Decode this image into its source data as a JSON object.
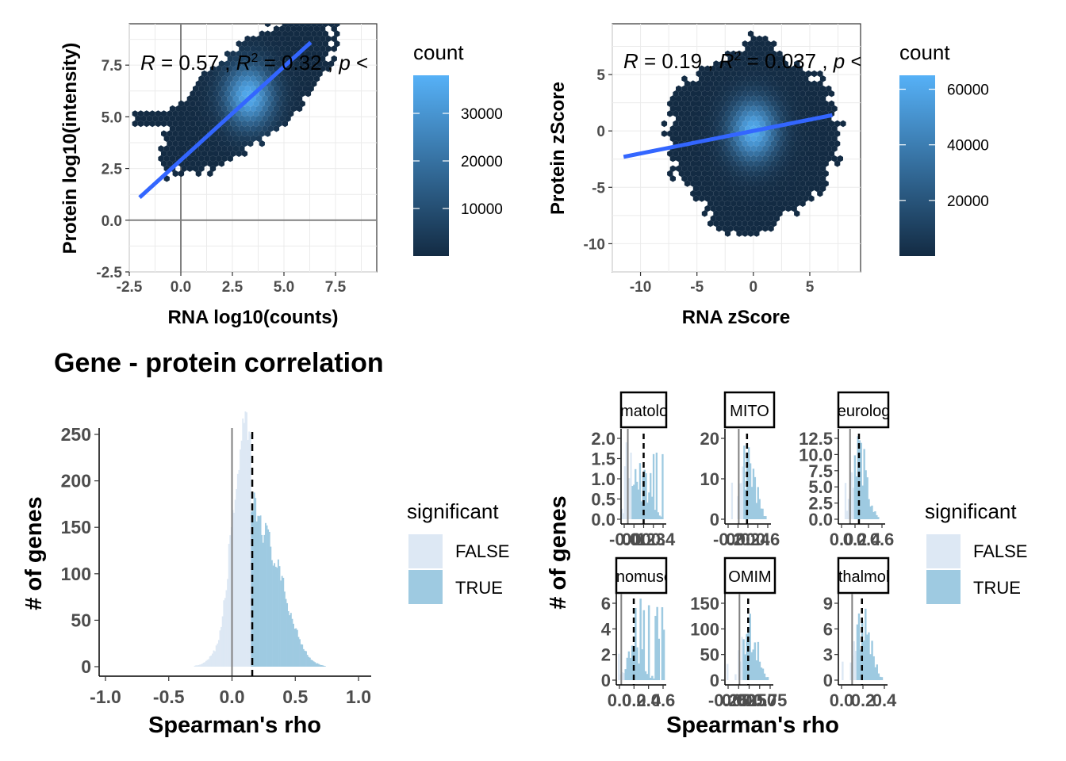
{
  "section_title": "Gene - protein correlation",
  "chart_data": [
    {
      "id": "scatter_log",
      "type": "hexbin",
      "annotation": {
        "r": "0.57",
        "r2": "0.32",
        "p": "p"
      },
      "xlabel": "RNA log10(counts)",
      "ylabel": "Protein log10(intensity)",
      "xlim": [
        -2.5,
        9.5
      ],
      "ylim": [
        -2.5,
        9.5
      ],
      "xticks": [
        -2.5,
        0,
        2.5,
        5,
        7.5
      ],
      "xtick_labels": [
        "-2.5",
        "0.0",
        "2.5",
        "5.0",
        "7.5"
      ],
      "yticks": [
        -2.5,
        0,
        2.5,
        5,
        7.5
      ],
      "ytick_labels": [
        "-2.5",
        "0.0",
        "2.5",
        "5.0",
        "7.5"
      ],
      "fit_line": {
        "x": [
          -2.0,
          6.3
        ],
        "y": [
          1.1,
          8.6
        ]
      },
      "density_center": [
        3.3,
        6.0
      ],
      "legend": {
        "title": "count",
        "ticks": [
          10000,
          20000,
          30000
        ],
        "tick_labels": [
          "10000",
          "20000",
          "30000"
        ],
        "max": 38000
      }
    },
    {
      "id": "scatter_z",
      "type": "hexbin",
      "annotation": {
        "r": "0.19",
        "r2": "0.037",
        "p": "p"
      },
      "xlabel": "RNA zScore",
      "ylabel": "Protein zScore",
      "xlim": [
        -12.5,
        9.5
      ],
      "ylim": [
        -12.5,
        9.5
      ],
      "xticks": [
        -10,
        -5,
        0,
        5
      ],
      "xtick_labels": [
        "-10",
        "-5",
        "0",
        "5"
      ],
      "yticks": [
        -10,
        -5,
        0,
        5
      ],
      "ytick_labels": [
        "-10",
        "-5",
        "0",
        "5"
      ],
      "fit_line": {
        "x": [
          -11.5,
          7.0
        ],
        "y": [
          -2.3,
          1.4
        ]
      },
      "density_center": [
        0,
        0
      ],
      "legend": {
        "title": "count",
        "ticks": [
          20000,
          40000,
          60000
        ],
        "tick_labels": [
          "20000",
          "40000",
          "60000"
        ],
        "max": 65000
      }
    },
    {
      "id": "hist_all",
      "type": "histogram",
      "xlabel": "Spearman's rho",
      "ylabel": "# of genes",
      "xlim": [
        -1.05,
        1.1
      ],
      "ylim": [
        0,
        255
      ],
      "xticks": [
        -1,
        -0.5,
        0,
        0.5,
        1
      ],
      "xtick_labels": [
        "-1.0",
        "-0.5",
        "0.0",
        "0.5",
        "1.0"
      ],
      "yticks": [
        0,
        50,
        100,
        150,
        200,
        250
      ],
      "ytick_labels": [
        "0",
        "50",
        "100",
        "150",
        "200",
        "250"
      ],
      "median": 0.16,
      "fill_series": [
        {
          "name": "FALSE",
          "x": [
            -0.3,
            -0.25,
            -0.2,
            -0.15,
            -0.1,
            -0.05,
            0.0,
            0.05,
            0.1,
            0.15
          ],
          "y": [
            1,
            2,
            6,
            14,
            30,
            80,
            160,
            215,
            250,
            235
          ]
        },
        {
          "name": "TRUE",
          "x": [
            0.15,
            0.2,
            0.25,
            0.3,
            0.35,
            0.4,
            0.45,
            0.5,
            0.55,
            0.6,
            0.65,
            0.7,
            0.75
          ],
          "y": [
            175,
            165,
            150,
            130,
            110,
            88,
            62,
            42,
            25,
            12,
            5,
            2,
            0
          ]
        }
      ]
    }
  ],
  "hist_legend": {
    "title": "significant",
    "items": [
      "FALSE",
      "TRUE"
    ]
  },
  "facets": {
    "ylabel": "# of genes",
    "xlabel": "Spearman's rho",
    "legend": {
      "title": "significant",
      "items": [
        "FALSE",
        "TRUE"
      ]
    },
    "panels": [
      {
        "strip": "hematology",
        "yticks": [
          "0.0",
          "0.5",
          "1.0",
          "1.5",
          "2.0"
        ],
        "xticks": [
          "-0.0",
          "0.1",
          "0.2",
          "0.3",
          "0.4"
        ]
      },
      {
        "strip": "MITO",
        "yticks": [
          "0",
          "10",
          "20"
        ],
        "xticks": [
          "-0.2",
          "0.0",
          "0.2",
          "0.4",
          "0.6"
        ]
      },
      {
        "strip": "neurology",
        "yticks": [
          "0.0",
          "2.5",
          "5.0",
          "7.5",
          "10.0",
          "12.5"
        ],
        "xticks": [
          "0.0",
          "0.2",
          "0.4",
          "0.6"
        ]
      },
      {
        "strip": "genomuscle",
        "yticks": [
          "0",
          "2",
          "4",
          "6"
        ],
        "xticks": [
          "0.0",
          "0.2",
          "0.4",
          "0.6"
        ]
      },
      {
        "strip": "OMIM",
        "yticks": [
          "0",
          "50",
          "100",
          "150"
        ],
        "xticks": [
          "-0.25",
          "0.00",
          "0.25",
          "0.50",
          "0.75"
        ]
      },
      {
        "strip": "ophthalmology",
        "yticks": [
          "0",
          "3",
          "6",
          "9"
        ],
        "xticks": [
          "0.0",
          "0.2",
          "0.4"
        ]
      }
    ]
  },
  "colors": {
    "false_fill": "#dde8f4",
    "true_fill": "#9ecae1",
    "fit_line": "#3366ff",
    "low": "#132b43",
    "high": "#56b1f7"
  }
}
